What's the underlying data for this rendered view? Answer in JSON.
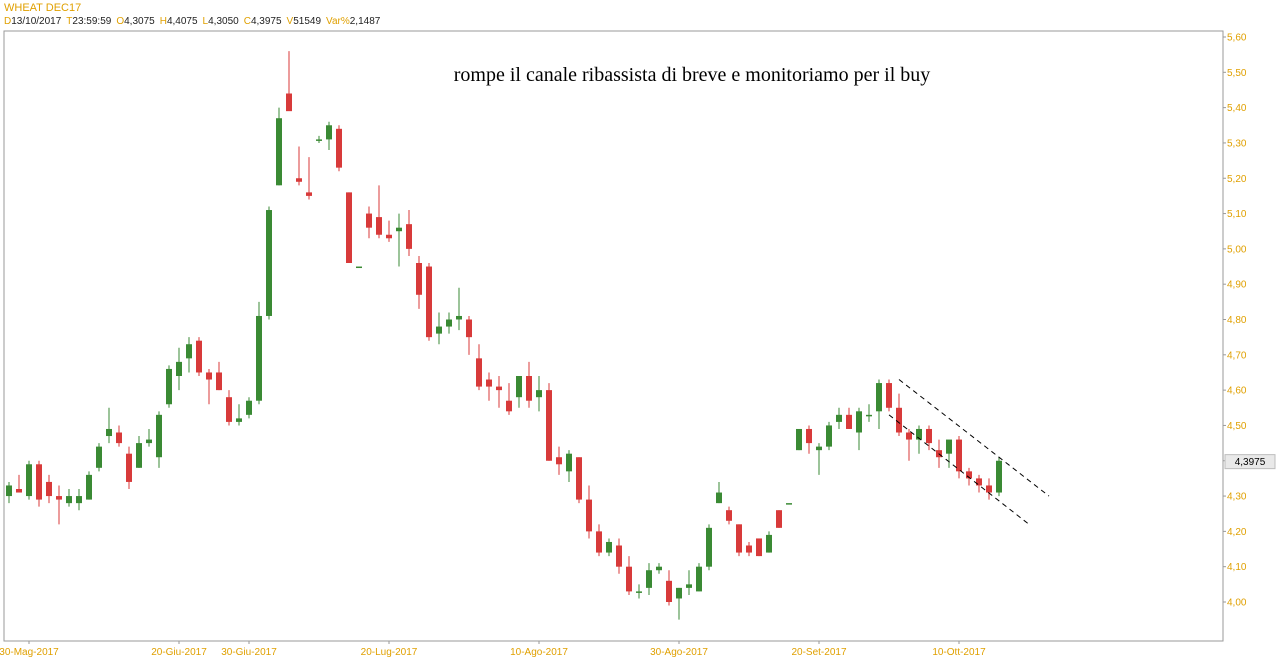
{
  "header": {
    "symbol": "WHEAT DEC17",
    "fields": [
      {
        "key": "D",
        "value": "13/10/2017"
      },
      {
        "key": "T",
        "value": "23:59:59"
      },
      {
        "key": "O",
        "value": "4,3075"
      },
      {
        "key": "H",
        "value": "4,4075"
      },
      {
        "key": "L",
        "value": "4,3050"
      },
      {
        "key": "C",
        "value": "4,3975"
      },
      {
        "key": "V",
        "value": "51549"
      },
      {
        "key": "Var%",
        "value": "2,1487"
      }
    ]
  },
  "chart_data": {
    "type": "candlestick",
    "annotation": "rompe il canale ribassista di breve e monitoriamo per il buy",
    "last_price_label": "4,3975",
    "last_price": 4.3975,
    "ylim": [
      3.9,
      5.62
    ],
    "y_ticks": [
      {
        "value": 4.0,
        "label": "4,00"
      },
      {
        "value": 4.1,
        "label": "4,10"
      },
      {
        "value": 4.2,
        "label": "4,20"
      },
      {
        "value": 4.3,
        "label": "4,30"
      },
      {
        "value": 4.4,
        "label": "4,40"
      },
      {
        "value": 4.5,
        "label": "4,50"
      },
      {
        "value": 4.6,
        "label": "4,60"
      },
      {
        "value": 4.7,
        "label": "4,70"
      },
      {
        "value": 4.8,
        "label": "4,80"
      },
      {
        "value": 4.9,
        "label": "4,90"
      },
      {
        "value": 5.0,
        "label": "5,00"
      },
      {
        "value": 5.1,
        "label": "5,10"
      },
      {
        "value": 5.2,
        "label": "5,20"
      },
      {
        "value": 5.3,
        "label": "5,30"
      },
      {
        "value": 5.4,
        "label": "5,40"
      },
      {
        "value": 5.5,
        "label": "5,50"
      },
      {
        "value": 5.6,
        "label": "5,60"
      }
    ],
    "x_ticks": [
      {
        "index": 2,
        "label": "30-Mag-2017"
      },
      {
        "index": 17,
        "label": "20-Giu-2017"
      },
      {
        "index": 24,
        "label": "30-Giu-2017"
      },
      {
        "index": 38,
        "label": "20-Lug-2017"
      },
      {
        "index": 53,
        "label": "10-Ago-2017"
      },
      {
        "index": 67,
        "label": "30-Ago-2017"
      },
      {
        "index": 81,
        "label": "20-Set-2017"
      },
      {
        "index": 95,
        "label": "10-Ott-2017"
      }
    ],
    "candles": [
      {
        "o": 4.3,
        "h": 4.34,
        "l": 4.28,
        "c": 4.33
      },
      {
        "o": 4.32,
        "h": 4.36,
        "l": 4.31,
        "c": 4.31
      },
      {
        "o": 4.3,
        "h": 4.4,
        "l": 4.29,
        "c": 4.39
      },
      {
        "o": 4.39,
        "h": 4.4,
        "l": 4.27,
        "c": 4.29
      },
      {
        "o": 4.34,
        "h": 4.36,
        "l": 4.28,
        "c": 4.3
      },
      {
        "o": 4.3,
        "h": 4.33,
        "l": 4.22,
        "c": 4.29
      },
      {
        "o": 4.28,
        "h": 4.32,
        "l": 4.27,
        "c": 4.3
      },
      {
        "o": 4.28,
        "h": 4.32,
        "l": 4.26,
        "c": 4.3
      },
      {
        "o": 4.29,
        "h": 4.37,
        "l": 4.29,
        "c": 4.36
      },
      {
        "o": 4.38,
        "h": 4.45,
        "l": 4.37,
        "c": 4.44
      },
      {
        "o": 4.47,
        "h": 4.55,
        "l": 4.45,
        "c": 4.49
      },
      {
        "o": 4.48,
        "h": 4.5,
        "l": 4.44,
        "c": 4.45
      },
      {
        "o": 4.42,
        "h": 4.44,
        "l": 4.32,
        "c": 4.34
      },
      {
        "o": 4.38,
        "h": 4.47,
        "l": 4.38,
        "c": 4.45
      },
      {
        "o": 4.45,
        "h": 4.49,
        "l": 4.44,
        "c": 4.46
      },
      {
        "o": 4.41,
        "h": 4.54,
        "l": 4.38,
        "c": 4.53
      },
      {
        "o": 4.56,
        "h": 4.67,
        "l": 4.55,
        "c": 4.66
      },
      {
        "o": 4.64,
        "h": 4.72,
        "l": 4.6,
        "c": 4.68
      },
      {
        "o": 4.69,
        "h": 4.75,
        "l": 4.65,
        "c": 4.73
      },
      {
        "o": 4.74,
        "h": 4.75,
        "l": 4.64,
        "c": 4.65
      },
      {
        "o": 4.65,
        "h": 4.66,
        "l": 4.56,
        "c": 4.63
      },
      {
        "o": 4.65,
        "h": 4.68,
        "l": 4.6,
        "c": 4.6
      },
      {
        "o": 4.58,
        "h": 4.6,
        "l": 4.5,
        "c": 4.51
      },
      {
        "o": 4.51,
        "h": 4.56,
        "l": 4.5,
        "c": 4.52
      },
      {
        "o": 4.53,
        "h": 4.58,
        "l": 4.52,
        "c": 4.57
      },
      {
        "o": 4.57,
        "h": 4.85,
        "l": 4.56,
        "c": 4.81
      },
      {
        "o": 4.81,
        "h": 5.12,
        "l": 4.8,
        "c": 5.11
      },
      {
        "o": 5.18,
        "h": 5.4,
        "l": 5.18,
        "c": 5.37
      },
      {
        "o": 5.44,
        "h": 5.56,
        "l": 5.4,
        "c": 5.39
      },
      {
        "o": 5.2,
        "h": 5.29,
        "l": 5.18,
        "c": 5.19
      },
      {
        "o": 5.16,
        "h": 5.26,
        "l": 5.14,
        "c": 5.15
      },
      {
        "o": 5.31,
        "h": 5.32,
        "l": 5.3,
        "c": 5.31
      },
      {
        "o": 5.31,
        "h": 5.36,
        "l": 5.28,
        "c": 5.35
      },
      {
        "o": 5.34,
        "h": 5.35,
        "l": 5.22,
        "c": 5.23
      },
      {
        "o": 5.16,
        "h": 5.16,
        "l": 4.96,
        "c": 4.96
      },
      {
        "o": 4.95,
        "h": 4.95,
        "l": 4.95,
        "c": 4.95
      },
      {
        "o": 5.1,
        "h": 5.12,
        "l": 5.03,
        "c": 5.06
      },
      {
        "o": 5.09,
        "h": 5.18,
        "l": 5.03,
        "c": 5.04
      },
      {
        "o": 5.04,
        "h": 5.08,
        "l": 5.02,
        "c": 5.03
      },
      {
        "o": 5.05,
        "h": 5.1,
        "l": 4.95,
        "c": 5.06
      },
      {
        "o": 5.07,
        "h": 5.11,
        "l": 4.98,
        "c": 5.0
      },
      {
        "o": 4.96,
        "h": 4.98,
        "l": 4.83,
        "c": 4.87
      },
      {
        "o": 4.95,
        "h": 4.96,
        "l": 4.74,
        "c": 4.75
      },
      {
        "o": 4.76,
        "h": 4.82,
        "l": 4.73,
        "c": 4.78
      },
      {
        "o": 4.78,
        "h": 4.82,
        "l": 4.76,
        "c": 4.8
      },
      {
        "o": 4.8,
        "h": 4.89,
        "l": 4.77,
        "c": 4.81
      },
      {
        "o": 4.8,
        "h": 4.81,
        "l": 4.7,
        "c": 4.75
      },
      {
        "o": 4.69,
        "h": 4.73,
        "l": 4.6,
        "c": 4.61
      },
      {
        "o": 4.63,
        "h": 4.65,
        "l": 4.57,
        "c": 4.61
      },
      {
        "o": 4.61,
        "h": 4.64,
        "l": 4.55,
        "c": 4.6
      },
      {
        "o": 4.57,
        "h": 4.62,
        "l": 4.53,
        "c": 4.54
      },
      {
        "o": 4.58,
        "h": 4.64,
        "l": 4.55,
        "c": 4.64
      },
      {
        "o": 4.64,
        "h": 4.68,
        "l": 4.55,
        "c": 4.57
      },
      {
        "o": 4.58,
        "h": 4.64,
        "l": 4.54,
        "c": 4.6
      },
      {
        "o": 4.6,
        "h": 4.62,
        "l": 4.4,
        "c": 4.4
      },
      {
        "o": 4.41,
        "h": 4.44,
        "l": 4.36,
        "c": 4.39
      },
      {
        "o": 4.37,
        "h": 4.43,
        "l": 4.34,
        "c": 4.42
      },
      {
        "o": 4.41,
        "h": 4.41,
        "l": 4.28,
        "c": 4.29
      },
      {
        "o": 4.29,
        "h": 4.33,
        "l": 4.18,
        "c": 4.2
      },
      {
        "o": 4.2,
        "h": 4.22,
        "l": 4.13,
        "c": 4.14
      },
      {
        "o": 4.14,
        "h": 4.18,
        "l": 4.13,
        "c": 4.17
      },
      {
        "o": 4.16,
        "h": 4.18,
        "l": 4.08,
        "c": 4.1
      },
      {
        "o": 4.1,
        "h": 4.13,
        "l": 4.02,
        "c": 4.03
      },
      {
        "o": 4.03,
        "h": 4.05,
        "l": 4.01,
        "c": 4.03
      },
      {
        "o": 4.04,
        "h": 4.11,
        "l": 4.02,
        "c": 4.09
      },
      {
        "o": 4.09,
        "h": 4.11,
        "l": 4.08,
        "c": 4.1
      },
      {
        "o": 4.06,
        "h": 4.09,
        "l": 3.99,
        "c": 4.0
      },
      {
        "o": 4.01,
        "h": 4.04,
        "l": 3.95,
        "c": 4.04
      },
      {
        "o": 4.04,
        "h": 4.09,
        "l": 4.02,
        "c": 4.05
      },
      {
        "o": 4.03,
        "h": 4.11,
        "l": 4.03,
        "c": 4.1
      },
      {
        "o": 4.1,
        "h": 4.22,
        "l": 4.09,
        "c": 4.21
      },
      {
        "o": 4.28,
        "h": 4.34,
        "l": 4.28,
        "c": 4.31
      },
      {
        "o": 4.26,
        "h": 4.27,
        "l": 4.22,
        "c": 4.23
      },
      {
        "o": 4.22,
        "h": 4.22,
        "l": 4.13,
        "c": 4.14
      },
      {
        "o": 4.16,
        "h": 4.17,
        "l": 4.13,
        "c": 4.14
      },
      {
        "o": 4.18,
        "h": 4.18,
        "l": 4.13,
        "c": 4.13
      },
      {
        "o": 4.14,
        "h": 4.2,
        "l": 4.14,
        "c": 4.19
      },
      {
        "o": 4.26,
        "h": 4.26,
        "l": 4.21,
        "c": 4.21
      },
      {
        "o": 4.28,
        "h": 4.28,
        "l": 4.28,
        "c": 4.28
      },
      {
        "o": 4.43,
        "h": 4.49,
        "l": 4.43,
        "c": 4.49
      },
      {
        "o": 4.49,
        "h": 4.5,
        "l": 4.42,
        "c": 4.45
      },
      {
        "o": 4.43,
        "h": 4.45,
        "l": 4.36,
        "c": 4.44
      },
      {
        "o": 4.44,
        "h": 4.51,
        "l": 4.43,
        "c": 4.5
      },
      {
        "o": 4.51,
        "h": 4.55,
        "l": 4.49,
        "c": 4.53
      },
      {
        "o": 4.53,
        "h": 4.55,
        "l": 4.49,
        "c": 4.49
      },
      {
        "o": 4.48,
        "h": 4.55,
        "l": 4.43,
        "c": 4.54
      },
      {
        "o": 4.53,
        "h": 4.56,
        "l": 4.51,
        "c": 4.53
      },
      {
        "o": 4.54,
        "h": 4.63,
        "l": 4.49,
        "c": 4.62
      },
      {
        "o": 4.62,
        "h": 4.63,
        "l": 4.54,
        "c": 4.55
      },
      {
        "o": 4.55,
        "h": 4.59,
        "l": 4.47,
        "c": 4.48
      },
      {
        "o": 4.48,
        "h": 4.49,
        "l": 4.4,
        "c": 4.46
      },
      {
        "o": 4.46,
        "h": 4.5,
        "l": 4.42,
        "c": 4.49
      },
      {
        "o": 4.49,
        "h": 4.5,
        "l": 4.43,
        "c": 4.45
      },
      {
        "o": 4.43,
        "h": 4.46,
        "l": 4.38,
        "c": 4.41
      },
      {
        "o": 4.42,
        "h": 4.45,
        "l": 4.38,
        "c": 4.46
      },
      {
        "o": 4.46,
        "h": 4.47,
        "l": 4.35,
        "c": 4.37
      },
      {
        "o": 4.37,
        "h": 4.38,
        "l": 4.33,
        "c": 4.35
      },
      {
        "o": 4.35,
        "h": 4.36,
        "l": 4.31,
        "c": 4.33
      },
      {
        "o": 4.33,
        "h": 4.35,
        "l": 4.29,
        "c": 4.31
      },
      {
        "o": 4.31,
        "h": 4.41,
        "l": 4.3,
        "c": 4.4
      }
    ],
    "channel_lines": [
      {
        "from": {
          "index": 88,
          "value": 4.53
        },
        "to": {
          "index": 102,
          "value": 4.22
        }
      },
      {
        "from": {
          "index": 89,
          "value": 4.63
        },
        "to": {
          "index": 104,
          "value": 4.3
        }
      }
    ]
  },
  "colors": {
    "up": "#3a8a34",
    "down": "#d83a3a",
    "axis_text": "#e0a000",
    "frame": "#9a9a9a",
    "text": "#000000"
  }
}
